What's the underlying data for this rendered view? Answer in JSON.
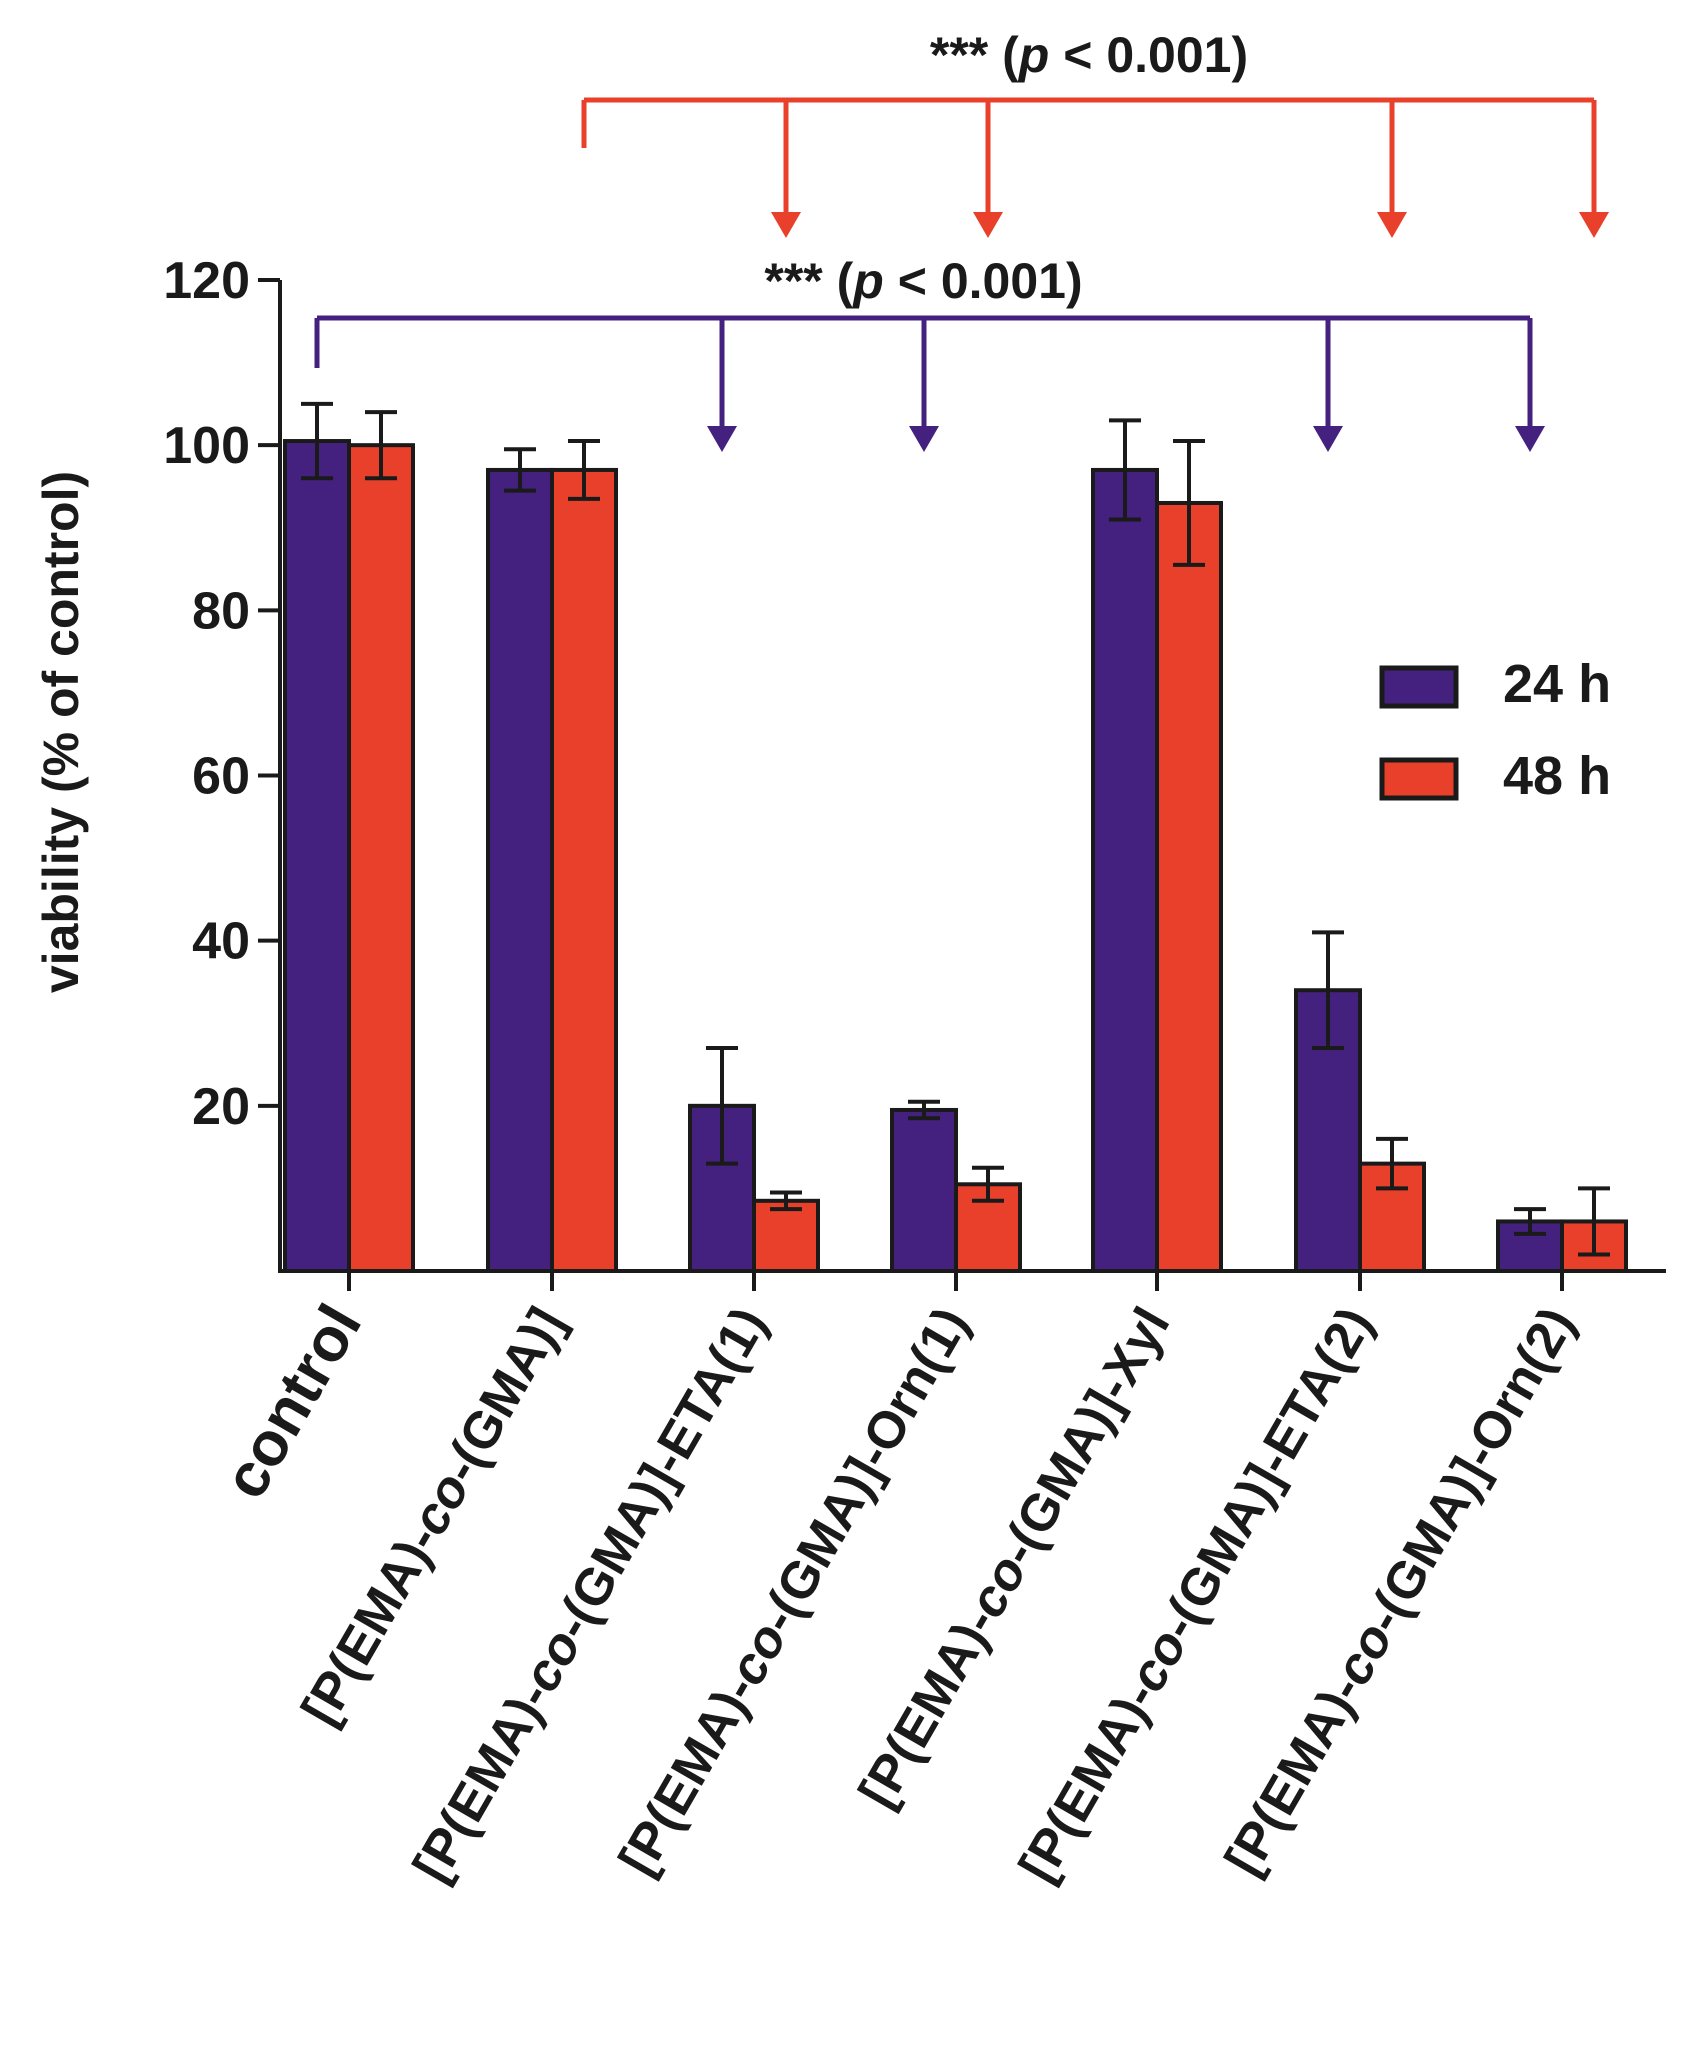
{
  "chart_data": {
    "type": "bar",
    "title": "",
    "xlabel": "",
    "ylabel": "viability (% of control)",
    "ylim": [
      0,
      120
    ],
    "yticks": [
      20,
      40,
      60,
      80,
      100,
      120
    ],
    "yticks_text": [
      "20",
      "40",
      "60",
      "80",
      "100",
      "120"
    ],
    "grid": false,
    "legend_position": "right",
    "categories": [
      {
        "pre": "",
        "ital": "",
        "post": "control"
      },
      {
        "pre": "[P(EMA)-",
        "ital": "co",
        "post": "-(GMA)]"
      },
      {
        "pre": "[P(EMA)-",
        "ital": "co",
        "post": "-(GMA)]-ETA(1)"
      },
      {
        "pre": "[P(EMA)-",
        "ital": "co",
        "post": "-(GMA)]-Orn(1)"
      },
      {
        "pre": "[P(EMA)-",
        "ital": "co",
        "post": "-(GMA)]-Xyl"
      },
      {
        "pre": "[P(EMA)-",
        "ital": "co",
        "post": "-(GMA)]-ETA(2)"
      },
      {
        "pre": "[P(EMA)-",
        "ital": "co",
        "post": "-(GMA)]-Orn(2)"
      }
    ],
    "series": [
      {
        "name": "24 h",
        "color": "#44217f",
        "values": [
          100.5,
          97,
          20,
          19.5,
          97,
          34,
          6
        ],
        "errors": [
          4.5,
          2.5,
          7,
          1,
          6,
          7,
          1.5
        ]
      },
      {
        "name": "48 h",
        "color": "#e8402a",
        "values": [
          100,
          97,
          8.5,
          10.5,
          93,
          13,
          6
        ],
        "errors": [
          4,
          3.5,
          1,
          2,
          7.5,
          3,
          4
        ]
      }
    ],
    "annotations": [
      {
        "text_stars": "***",
        "text_pre": " (",
        "text_p": "p",
        "text_post": " < 0.001)",
        "color": "#e8402a",
        "from": 1,
        "to": [
          2,
          3,
          5,
          6
        ],
        "applies_to": "48 h"
      },
      {
        "text_stars": "***",
        "text_pre": " (",
        "text_p": "p",
        "text_post": " < 0.001)",
        "color": "#44217f",
        "from": 0,
        "to": [
          2,
          3,
          5,
          6
        ],
        "applies_to": "24 h"
      }
    ]
  }
}
